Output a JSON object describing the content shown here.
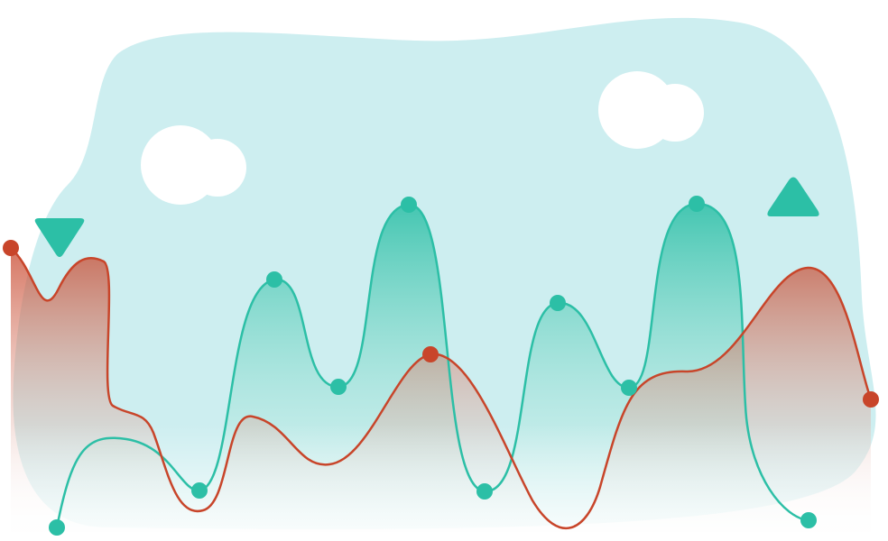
{
  "illustration": {
    "colors": {
      "background": "#ffffff",
      "sky_blob": "#cdeef0",
      "cloud": "#ffffff",
      "teal": "#2cbfa6",
      "teal_fill_top": "#2cbfa6",
      "teal_fill_bottom": "#e6f7f5",
      "red": "#c8452a",
      "red_fill_top": "#c8452a",
      "red_fill_bottom": "#f4f0ee"
    },
    "icons": {
      "down": "triangle-down-icon",
      "up": "triangle-up-icon",
      "cloud_left": "cloud-icon",
      "cloud_right": "cloud-icon"
    }
  }
}
